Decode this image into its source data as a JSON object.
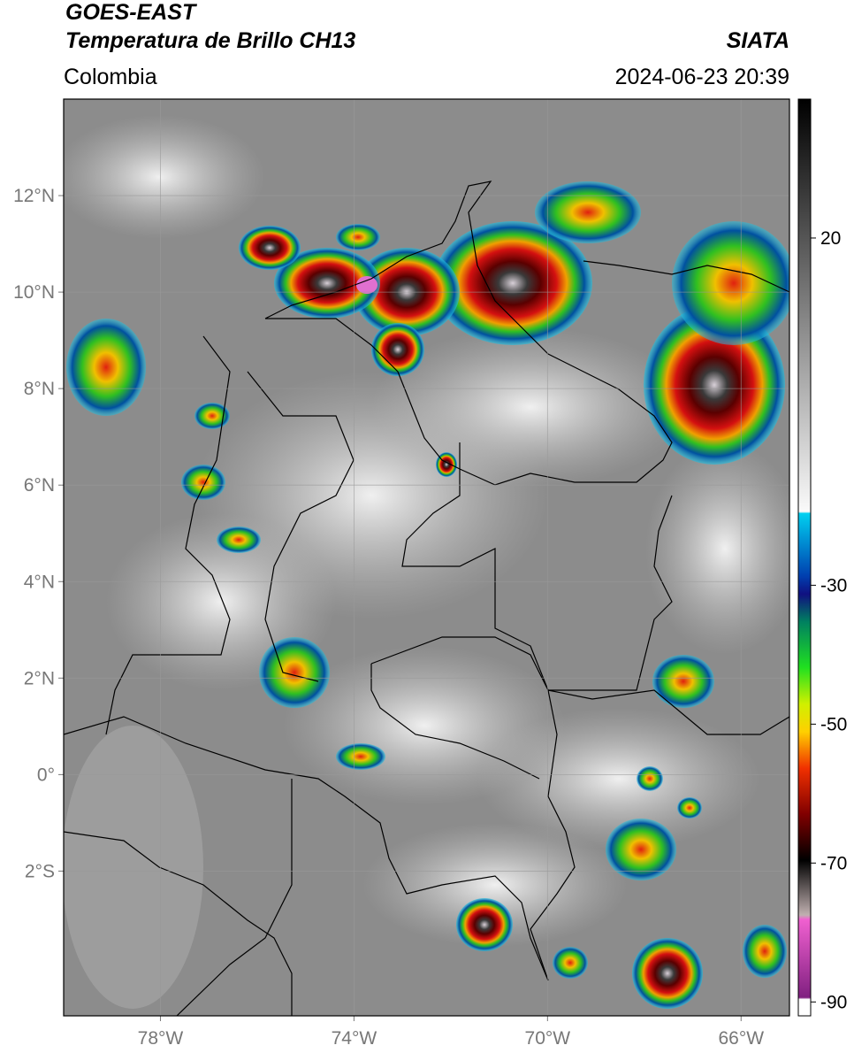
{
  "header": {
    "title": "GOES-EAST",
    "subtitle": "Temperatura de Brillo CH13",
    "source": "SIATA",
    "region": "Colombia",
    "datetime": "2024-06-23 20:39"
  },
  "map": {
    "xlim": [
      -80,
      -65
    ],
    "ylim": [
      -5,
      14
    ],
    "xticks": [
      {
        "value": -78,
        "label": "78°W"
      },
      {
        "value": -74,
        "label": "74°W"
      },
      {
        "value": -70,
        "label": "70°W"
      },
      {
        "value": -66,
        "label": "66°W"
      }
    ],
    "yticks": [
      {
        "value": 12,
        "label": "12°N"
      },
      {
        "value": 10,
        "label": "10°N"
      },
      {
        "value": 8,
        "label": "8°N"
      },
      {
        "value": 6,
        "label": "6°N"
      },
      {
        "value": 4,
        "label": "4°N"
      },
      {
        "value": 2,
        "label": "2°N"
      },
      {
        "value": 0,
        "label": "0°"
      },
      {
        "value": -2,
        "label": "2°S"
      }
    ]
  },
  "colorbar": {
    "range": [
      -92,
      40
    ],
    "ticks": [
      20,
      -30,
      -50,
      -70,
      -90
    ]
  }
}
